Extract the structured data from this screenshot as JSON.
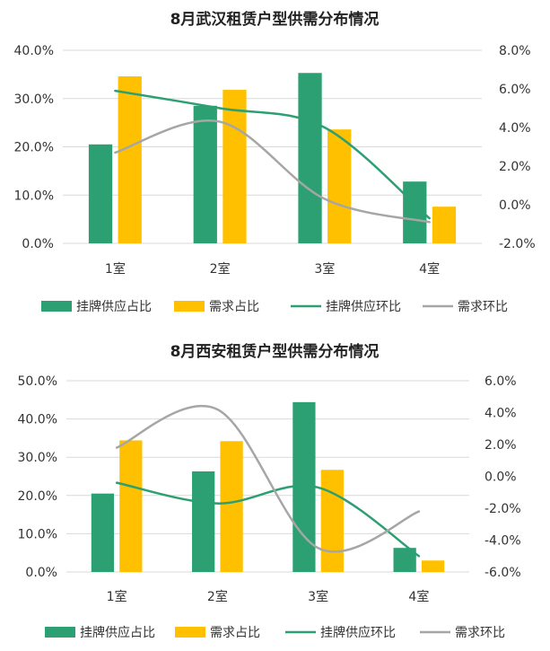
{
  "chart_data": [
    {
      "type": "bar",
      "title": "8月武汉租赁户型供需分布情况",
      "categories": [
        "1室",
        "2室",
        "3室",
        "4室"
      ],
      "y_left": {
        "ylim": [
          0,
          40
        ],
        "ticks": [
          "0.0%",
          "10.0%",
          "20.0%",
          "30.0%",
          "40.0%"
        ],
        "tick_values": [
          0,
          10,
          20,
          30,
          40
        ]
      },
      "y_right": {
        "ylim": [
          -2,
          8
        ],
        "ticks": [
          "-2.0%",
          "0.0%",
          "2.0%",
          "4.0%",
          "6.0%",
          "8.0%"
        ],
        "tick_values": [
          -2,
          0,
          2,
          4,
          6,
          8
        ]
      },
      "series": [
        {
          "name": "挂牌供应占比",
          "kind": "bar",
          "axis": "left",
          "color": "#2ca073",
          "values": [
            20.5,
            28.5,
            35.3,
            12.8
          ]
        },
        {
          "name": "需求占比",
          "kind": "bar",
          "axis": "left",
          "color": "#ffc000",
          "values": [
            34.6,
            31.8,
            23.6,
            7.6
          ]
        },
        {
          "name": "挂牌供应环比",
          "kind": "line",
          "axis": "right",
          "color": "#2ca073",
          "values": [
            5.9,
            5.0,
            4.0,
            -0.7
          ]
        },
        {
          "name": "需求环比",
          "kind": "line",
          "axis": "right",
          "color": "#a6a6a6",
          "values": [
            2.7,
            4.3,
            0.3,
            -0.9
          ]
        }
      ],
      "legend_position": "bottom",
      "grid": true
    },
    {
      "type": "bar",
      "title": "8月西安租赁户型供需分布情况",
      "categories": [
        "1室",
        "2室",
        "3室",
        "4室"
      ],
      "y_left": {
        "ylim": [
          0,
          50
        ],
        "ticks": [
          "0.0%",
          "10.0%",
          "20.0%",
          "30.0%",
          "40.0%",
          "50.0%"
        ],
        "tick_values": [
          0,
          10,
          20,
          30,
          40,
          50
        ]
      },
      "y_right": {
        "ylim": [
          -6,
          6
        ],
        "ticks": [
          "-6.0%",
          "-4.0%",
          "-2.0%",
          "0.0%",
          "2.0%",
          "4.0%",
          "6.0%"
        ],
        "tick_values": [
          -6,
          -4,
          -2,
          0,
          2,
          4,
          6
        ]
      },
      "series": [
        {
          "name": "挂牌供应占比",
          "kind": "bar",
          "axis": "left",
          "color": "#2ca073",
          "values": [
            20.5,
            26.3,
            44.4,
            6.3
          ]
        },
        {
          "name": "需求占比",
          "kind": "bar",
          "axis": "left",
          "color": "#ffc000",
          "values": [
            34.4,
            34.2,
            26.7,
            3.0
          ]
        },
        {
          "name": "挂牌供应环比",
          "kind": "line",
          "axis": "right",
          "color": "#2ca073",
          "values": [
            -0.4,
            -1.7,
            -0.7,
            -5.0
          ]
        },
        {
          "name": "需求环比",
          "kind": "line",
          "axis": "right",
          "color": "#a6a6a6",
          "values": [
            1.8,
            4.2,
            -4.5,
            -2.2
          ]
        }
      ],
      "legend_position": "bottom",
      "grid": true
    }
  ]
}
